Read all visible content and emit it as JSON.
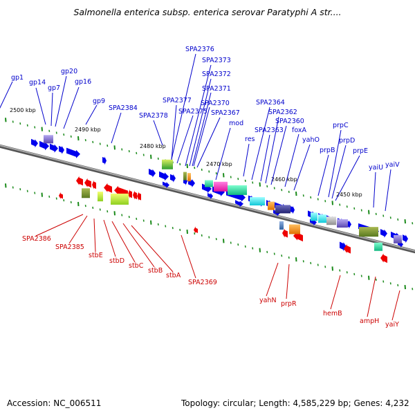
{
  "title": "Salmonella enterica subsp. enterica serovar Paratyphi A str....",
  "footer": {
    "accession": "Accession: NC_006511",
    "topology": "Topology: circular; Length: 4,585,229 bp; Genes: 4,232"
  },
  "colors": {
    "forward_strand": "#0000ee",
    "reverse_strand": "#ee0000",
    "backbone": "#888888",
    "tick": "#1a8a1a"
  },
  "kbp_marks": [
    "2500 kbp",
    "2490 kbp",
    "2480 kbp",
    "2470 kbp",
    "2460 kbp",
    "2450 kbp"
  ],
  "top_labels": [
    "gp1",
    "gp14",
    "gp7",
    "gp20",
    "gp16",
    "gp9",
    "SPA2384",
    "SPA2378",
    "SPA2377",
    "SPA2376",
    "SPA2375",
    "SPA2373",
    "SPA2372",
    "SPA2371",
    "SPA2370",
    "SPA2367",
    "mod",
    "res",
    "SPA2364",
    "SPA2363",
    "SPA2362",
    "SPA2360",
    "foxA",
    "yahO",
    "prpB",
    "prpC",
    "prpD",
    "prpE",
    "yaiU",
    "yaiV"
  ],
  "bottom_labels": [
    "SPA2386",
    "SPA2385",
    "stbE",
    "stbD",
    "stbC",
    "stbB",
    "stbA",
    "SPA2369",
    "yahN",
    "prpR",
    "hemB",
    "ampH",
    "yaiY"
  ]
}
